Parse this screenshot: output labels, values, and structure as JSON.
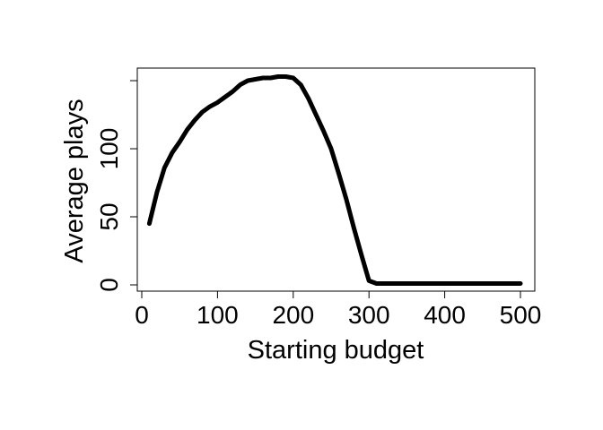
{
  "chart_data": {
    "type": "line",
    "title": "",
    "xlabel": "Starting budget",
    "ylabel": "Average plays",
    "xlim": [
      0,
      500
    ],
    "ylim": [
      0,
      152
    ],
    "x_ticks": [
      0,
      100,
      200,
      300,
      400,
      500
    ],
    "y_ticks": [
      0,
      50,
      100,
      150
    ],
    "x_tick_labels": [
      "0",
      "100",
      "200",
      "300",
      "400",
      "500"
    ],
    "y_tick_labels": [
      "0",
      "50",
      "100",
      ""
    ],
    "grid": false,
    "legend": "none",
    "line_color": "#000000",
    "series": [
      {
        "x": [
          10,
          20,
          30,
          40,
          50,
          60,
          70,
          80,
          90,
          100,
          110,
          120,
          130,
          140,
          150,
          160,
          170,
          180,
          190,
          200,
          210,
          220,
          230,
          240,
          250,
          260,
          270,
          280,
          290,
          300,
          310,
          320,
          340,
          360,
          380,
          400,
          420,
          440,
          460,
          480,
          500
        ],
        "y": [
          45,
          68,
          86,
          97,
          105,
          114,
          121,
          127,
          131,
          134,
          138,
          142,
          147,
          150,
          151,
          152,
          152,
          153,
          153,
          152,
          147,
          137,
          125,
          113,
          100,
          82,
          63,
          42,
          22,
          3,
          1,
          1,
          1,
          1,
          1,
          1,
          1,
          1,
          1,
          1,
          1
        ]
      }
    ]
  }
}
